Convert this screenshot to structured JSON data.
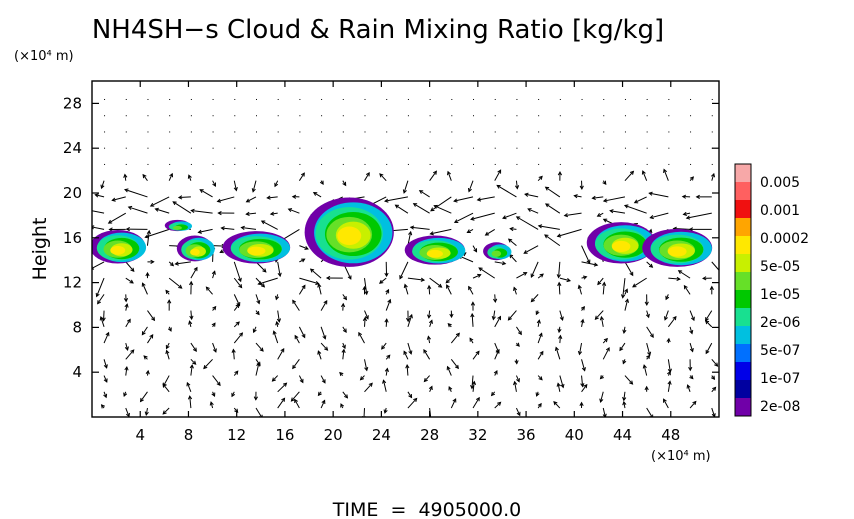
{
  "chart_data": {
    "type": "heatmap",
    "title": "NH4SH−s Cloud & Rain Mixing Ratio [kg/kg]",
    "ylabel": "Height",
    "y_unit": "(×10⁴ m)",
    "x_unit": "(×10⁴ m)",
    "xlim": [
      0,
      52
    ],
    "ylim": [
      0,
      30
    ],
    "x_ticks": [
      4,
      8,
      12,
      16,
      20,
      24,
      28,
      32,
      36,
      40,
      44,
      48
    ],
    "y_ticks": [
      4,
      8,
      12,
      16,
      20,
      24,
      28
    ],
    "footer": "TIME  =  4905000.0",
    "colorbar": {
      "labels": [
        "0.005",
        "0.001",
        "0.0002",
        "5e-05",
        "1e-05",
        "2e-06",
        "5e-07",
        "1e-07",
        "2e-08"
      ],
      "colors": [
        "#f7a8a8",
        "#ff6060",
        "#f01010",
        "#ffa500",
        "#ffe800",
        "#c8f000",
        "#66e028",
        "#00c800",
        "#18e090",
        "#00c0e0",
        "#0070ff",
        "#0000e8",
        "#0000a0",
        "#7000a8"
      ]
    },
    "cloud_cells": [
      {
        "x_range": [
          0,
          4.6
        ],
        "y_range": [
          13.7,
          16.7
        ],
        "peak": "5e-05"
      },
      {
        "x_range": [
          6.2,
          8.3
        ],
        "y_range": [
          16.6,
          17.6
        ],
        "peak": "1e-05"
      },
      {
        "x_range": [
          7.2,
          10.2
        ],
        "y_range": [
          13.9,
          16.2
        ],
        "peak": "5e-05"
      },
      {
        "x_range": [
          11.0,
          16.6
        ],
        "y_range": [
          13.7,
          16.6
        ],
        "peak": "5e-05"
      },
      {
        "x_range": [
          17.8,
          25.2
        ],
        "y_range": [
          13.4,
          19.6
        ],
        "peak": "5e-05"
      },
      {
        "x_range": [
          26.1,
          31.1
        ],
        "y_range": [
          13.6,
          16.2
        ],
        "peak": "5e-05"
      },
      {
        "x_range": [
          32.6,
          34.8
        ],
        "y_range": [
          14.0,
          15.6
        ],
        "peak": "1e-05"
      },
      {
        "x_range": [
          41.2,
          46.9
        ],
        "y_range": [
          13.7,
          17.4
        ],
        "peak": "5e-05"
      },
      {
        "x_range": [
          45.8,
          51.6
        ],
        "y_range": [
          13.4,
          16.8
        ],
        "peak": "5e-05"
      }
    ]
  }
}
